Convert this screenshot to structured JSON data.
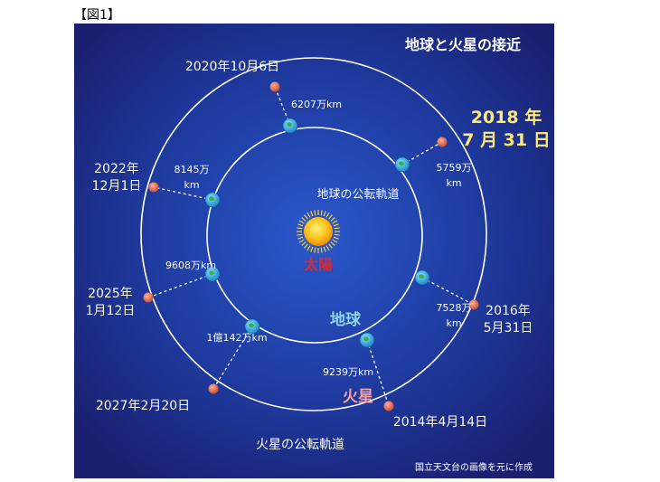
{
  "figure_label": "【図1】",
  "title": "地球と火星の接近",
  "sun_label": "太陽",
  "earth_label": "地球",
  "mars_label": "火星",
  "earth_orbit_label": "地球の公転軌道",
  "mars_orbit_label": "火星の公転軌道",
  "credit": "国立天文台の画像を元に作成",
  "highlight": {
    "line1": "2018 年",
    "line2": "7 月 31 日"
  },
  "approaches": [
    {
      "date": [
        "2020年10月6日"
      ],
      "distance": [
        "6207万km"
      ]
    },
    {
      "date": [
        "2022年",
        "12月1日"
      ],
      "distance": [
        "8145万",
        "km"
      ]
    },
    {
      "date": [
        "2025年",
        "1月12日"
      ],
      "distance": [
        "9608万km"
      ]
    },
    {
      "date": [
        "2027年2月20日"
      ],
      "distance": [
        "1億142万km"
      ]
    },
    {
      "date": [
        "2014年4月14日"
      ],
      "distance": [
        "9239万km"
      ]
    },
    {
      "date": [
        "2016年",
        "5月31日"
      ],
      "distance": [
        "7528万",
        "km"
      ]
    },
    {
      "date": [],
      "distance": [
        "5759万",
        "km"
      ]
    }
  ],
  "colors": {
    "background_center": "#1b3fae",
    "background_edge": "#1a1f6e",
    "orbit": "#ffffff",
    "sun": "#ffb400",
    "sun_label": "#e0262c",
    "earth_label": "#8fd3f0",
    "mars_label": "#f4a0a0",
    "mars": "#e0664a",
    "highlight_text": "#ffe97a"
  }
}
